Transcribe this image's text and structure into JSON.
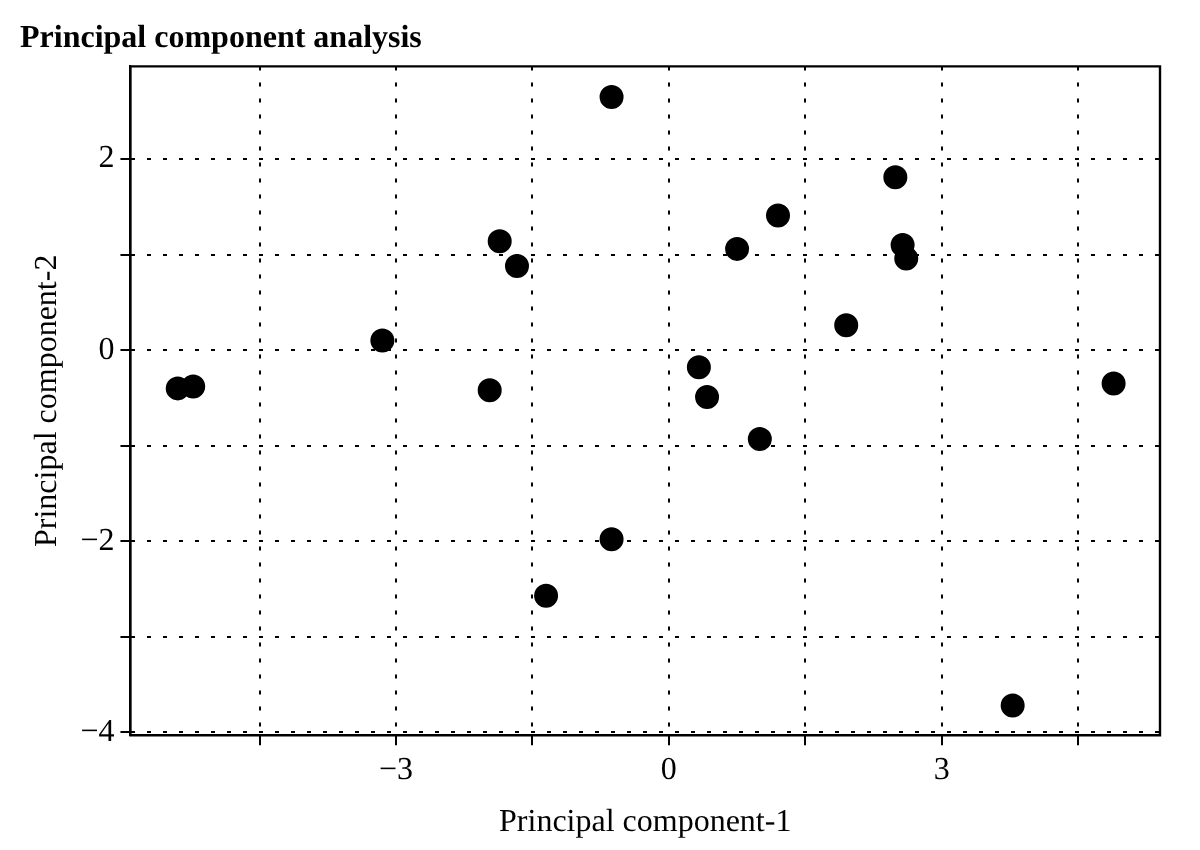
{
  "chart_data": {
    "type": "scatter",
    "title": "Principal component analysis",
    "xlabel": "Principal component-1",
    "ylabel": "Principal component-2",
    "x": [
      -5.4,
      -5.23,
      -3.15,
      -1.86,
      -1.67,
      -1.97,
      -0.63,
      -0.63,
      -1.35,
      0.33,
      0.42,
      0.75,
      1.2,
      1.0,
      1.95,
      2.49,
      2.57,
      2.61,
      4.89,
      3.78
    ],
    "series": [
      {
        "color": "#000000",
        "values": [
          -0.4,
          -0.38,
          0.1,
          1.14,
          0.88,
          -0.42,
          2.65,
          -1.98,
          -2.57,
          -0.18,
          -0.49,
          1.06,
          1.41,
          -0.93,
          0.26,
          1.81,
          1.1,
          0.96,
          -0.35,
          -3.72
        ]
      }
    ],
    "xlim": [
      -5.92,
      5.4
    ],
    "ylim": [
      -4.03,
      2.97
    ],
    "xticks": [
      {
        "value": -4.5,
        "label": null
      },
      -3,
      {
        "value": -1.5,
        "label": null
      },
      0,
      {
        "value": 1.5,
        "label": null
      },
      3,
      {
        "value": 4.5,
        "label": null
      }
    ],
    "yticks": [
      -4,
      {
        "value": -3,
        "label": null
      },
      -2,
      {
        "value": -1,
        "label": null
      },
      0,
      {
        "value": 1,
        "label": null
      },
      2
    ],
    "grid": true,
    "legend": false,
    "marker": "circle"
  }
}
